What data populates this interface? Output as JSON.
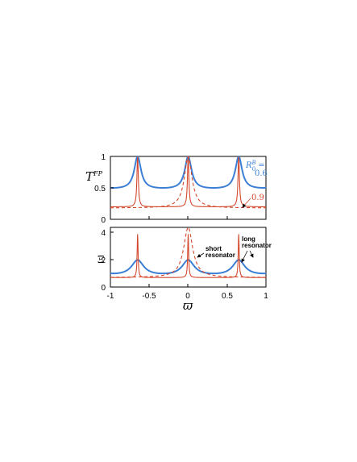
{
  "colors": {
    "blue": "#3a7fd5",
    "red": "#d4472b",
    "axis": "#000000"
  },
  "chart_data": [
    {
      "type": "line",
      "ylabel_main": "T",
      "ylabel_sup": "FP",
      "xlim": [
        -1,
        1
      ],
      "ylim": [
        0,
        1
      ],
      "yticks": [
        "0",
        "0.5",
        "1"
      ],
      "peaks_x": [
        -0.65,
        0,
        0.65
      ],
      "series": [
        {
          "key": "blue_R06",
          "style": "solid",
          "color": "blue",
          "min": 0.5,
          "max": 1.0
        },
        {
          "key": "red_R09",
          "style": "solid",
          "color": "red",
          "min": 0.2,
          "max": 1.0
        },
        {
          "key": "red_single",
          "style": "dashed",
          "color": "red",
          "min": 0.18,
          "max": 1.0
        }
      ],
      "annotations": {
        "r_label_main": "R",
        "r_label_sup": "B",
        "r_label_sub": "0",
        "r_label_eq": " =",
        "r_blue_value": "0.6",
        "r_red_value": "0.9"
      }
    },
    {
      "type": "line",
      "ylabel": "Ξ",
      "xlabel": "ϖ",
      "xlim": [
        -1,
        1
      ],
      "ylim": [
        0,
        4.4
      ],
      "yticks": [
        "0",
        "2",
        "4"
      ],
      "xticks": [
        "-1",
        "-0.5",
        "0",
        "0.5",
        "1"
      ],
      "series": [
        {
          "key": "blue_long",
          "style": "solid",
          "color": "blue",
          "min": 1.0,
          "max": 2.0
        },
        {
          "key": "red_long",
          "style": "solid",
          "color": "red",
          "min": 0.7,
          "max": 3.9
        },
        {
          "key": "red_short",
          "style": "dashed",
          "color": "red",
          "min": 0.7,
          "max": 4.4
        }
      ],
      "annotations": {
        "short_line1": "short",
        "short_line2": "resonator",
        "long_line1": "long",
        "long_line2": "resonator"
      }
    }
  ]
}
